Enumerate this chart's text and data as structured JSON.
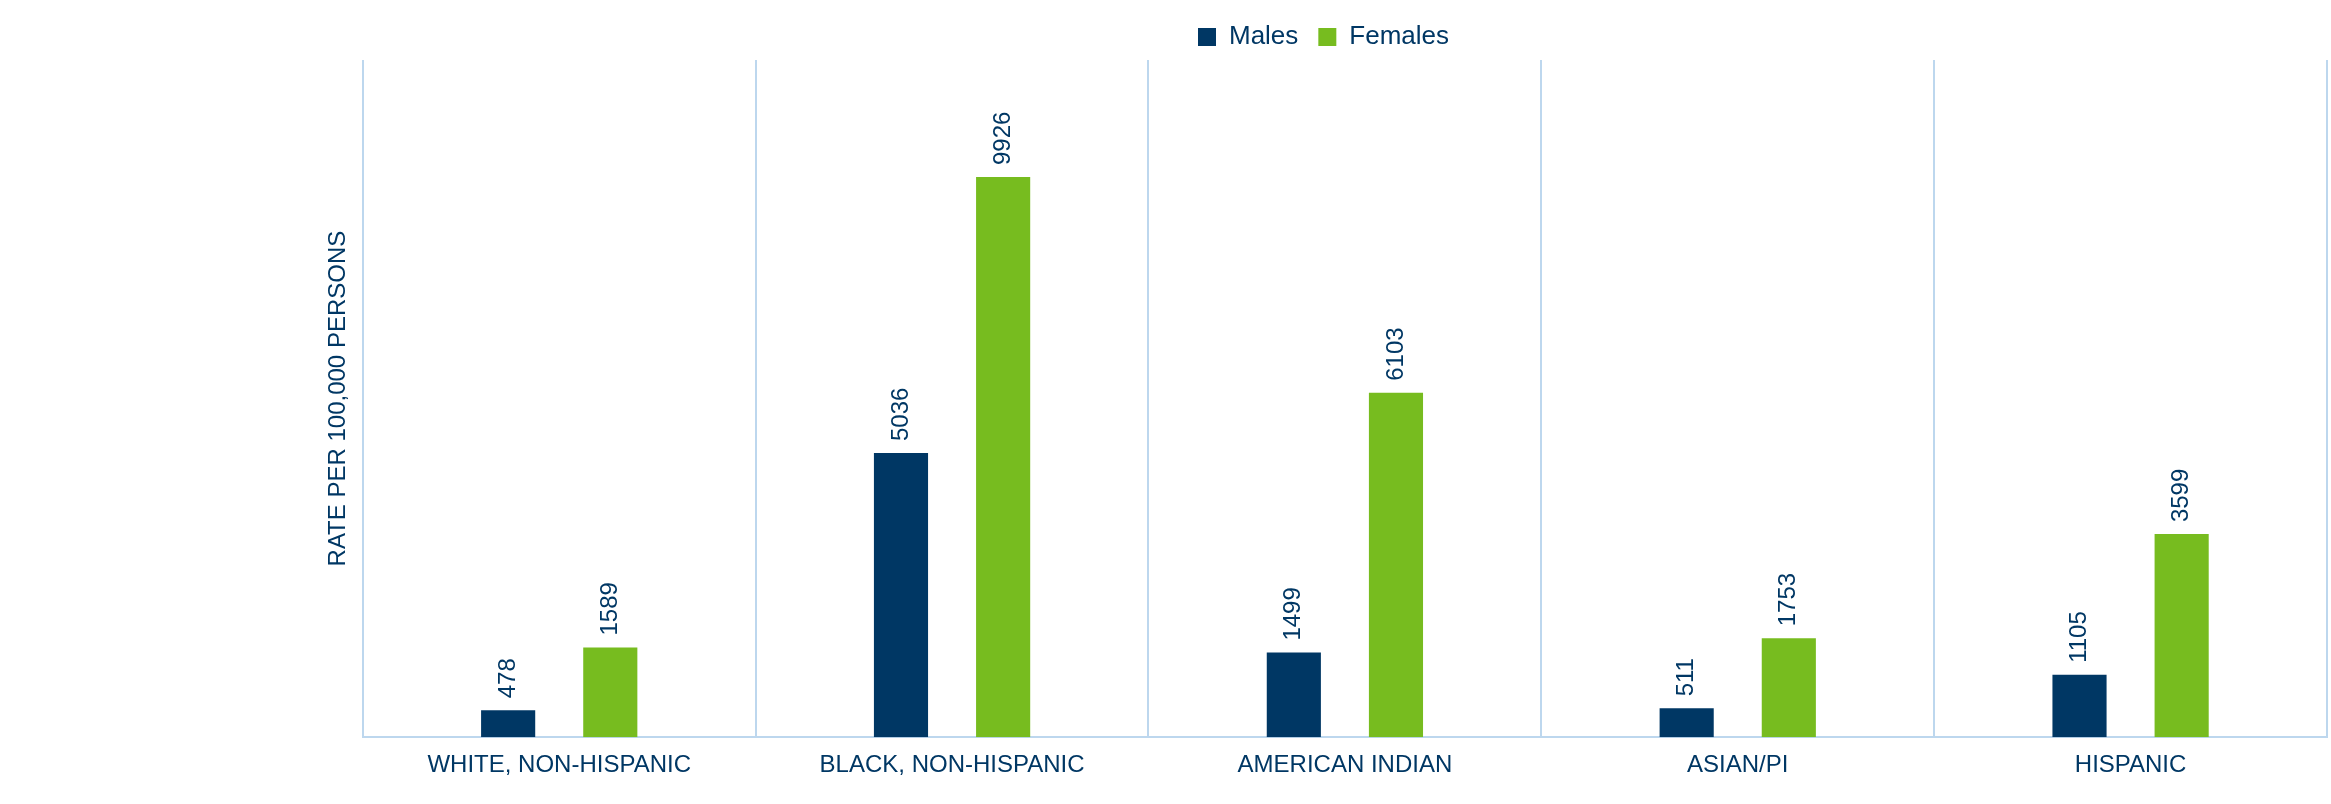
{
  "chart_data": {
    "type": "bar",
    "ylabel": "RATE PER 100,000 PERSONS",
    "categories": [
      "WHITE, NON-HISPANIC",
      "BLACK, NON-HISPANIC",
      "AMERICAN INDIAN",
      "ASIAN/PI",
      "HISPANIC"
    ],
    "series": [
      {
        "name": "Males",
        "color": "#003764",
        "values": [
          478,
          5036,
          1499,
          511,
          1105
        ]
      },
      {
        "name": "Females",
        "color": "#77bc1f",
        "values": [
          1589,
          9926,
          6103,
          1753,
          3599
        ]
      }
    ],
    "ylim": [
      0,
      12000
    ],
    "data_labels": true,
    "grid": "x",
    "legend": "top",
    "tick_labels": "x"
  }
}
